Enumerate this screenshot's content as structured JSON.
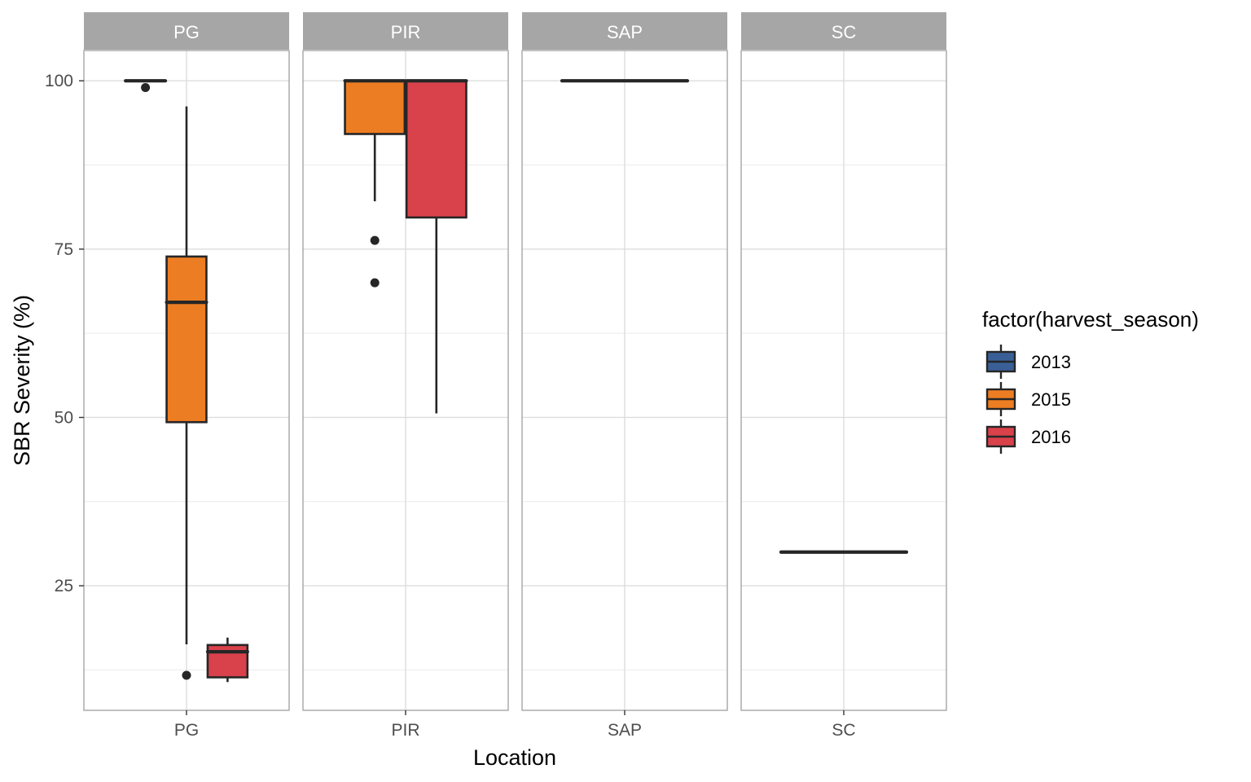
{
  "chart_data": {
    "type": "boxplot",
    "title": "",
    "xlabel": "Location",
    "ylabel": "SBR Severity (%)",
    "ylim": [
      6.5,
      104.5
    ],
    "yticks": [
      25,
      50,
      75,
      100
    ],
    "grid": true,
    "legend": {
      "title": "factor(harvest_season)",
      "placement": "right",
      "entries": [
        {
          "label": "2013",
          "color": "#3A5F97"
        },
        {
          "label": "2015",
          "color": "#ED7D22"
        },
        {
          "label": "2016",
          "color": "#D9414B"
        }
      ]
    },
    "panels": [
      {
        "strip": "PG",
        "tick": "PG",
        "boxes": [
          {
            "season": "2013",
            "slot": 0,
            "q1": 100,
            "median": 100,
            "q3": 100,
            "whisker_low": 100,
            "whisker_high": 100,
            "outliers": [
              99
            ]
          },
          {
            "season": "2015",
            "slot": 1,
            "q1": 49.3,
            "median": 67.1,
            "q3": 73.9,
            "whisker_low": 16.3,
            "whisker_high": 96.2,
            "outliers": [
              11.7
            ]
          },
          {
            "season": "2016",
            "slot": 2,
            "q1": 11.4,
            "median": 15.2,
            "q3": 16.2,
            "whisker_low": 10.7,
            "whisker_high": 17.3,
            "outliers": []
          }
        ]
      },
      {
        "strip": "PIR",
        "tick": "PIR",
        "boxes": [
          {
            "season": "2015",
            "slot": 0,
            "q1": 92.1,
            "median": 100,
            "q3": 100,
            "whisker_low": 82.1,
            "whisker_high": 100,
            "outliers": [
              76.3,
              70
            ]
          },
          {
            "season": "2016",
            "slot": 1,
            "q1": 79.7,
            "median": 100,
            "q3": 100,
            "whisker_low": 50.6,
            "whisker_high": 100,
            "outliers": []
          }
        ]
      },
      {
        "strip": "SAP",
        "tick": "SAP",
        "boxes": [
          {
            "season": "2015",
            "slot": 0,
            "q1": 100,
            "median": 100,
            "q3": 100,
            "whisker_low": 100,
            "whisker_high": 100,
            "outliers": []
          }
        ]
      },
      {
        "strip": "SC",
        "tick": "SC",
        "boxes": [
          {
            "season": "2016",
            "slot": 0,
            "q1": 30,
            "median": 30,
            "q3": 30,
            "whisker_low": 30,
            "whisker_high": 30,
            "outliers": []
          }
        ]
      }
    ]
  }
}
